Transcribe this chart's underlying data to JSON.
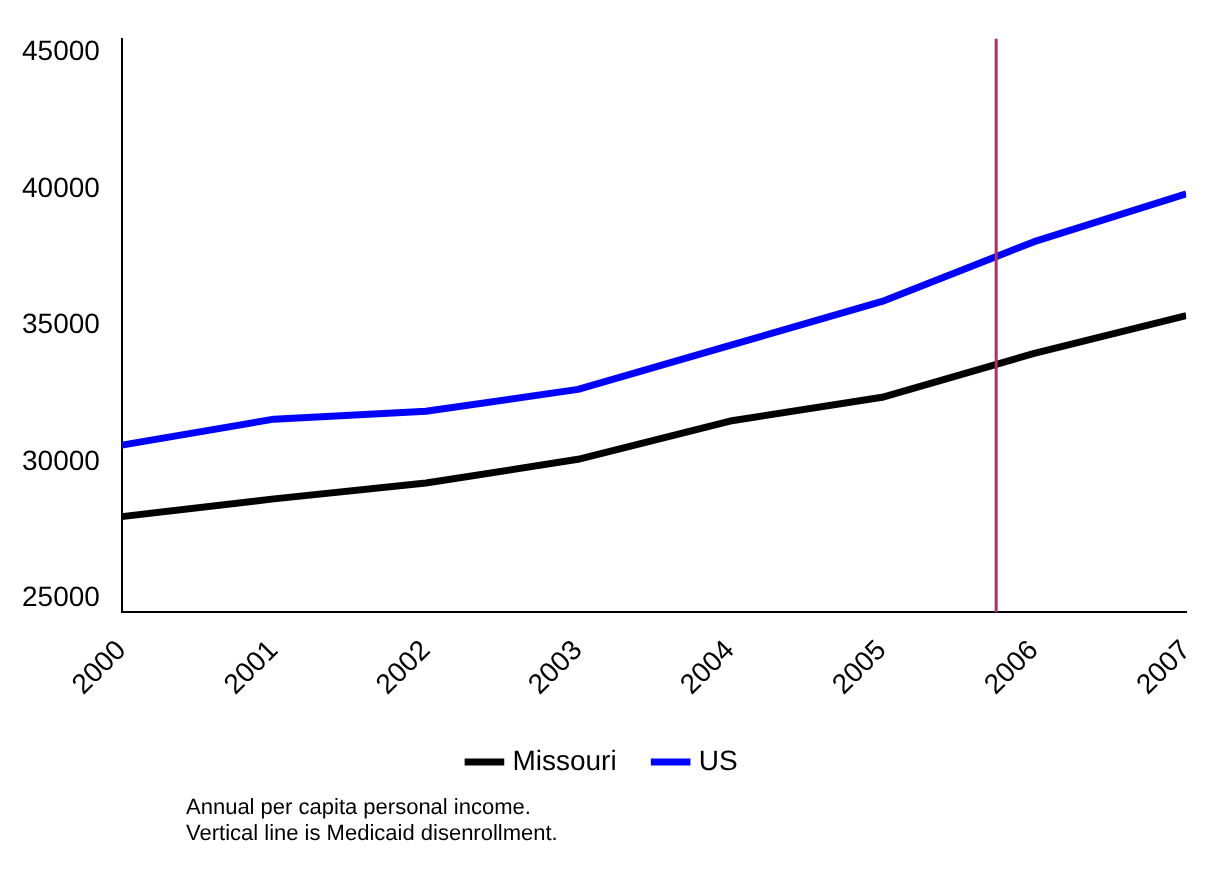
{
  "chart_data": {
    "type": "line",
    "x": [
      2000,
      2001,
      2002,
      2003,
      2004,
      2005,
      2006,
      2007
    ],
    "series": [
      {
        "name": "Missouri",
        "color": "#000000",
        "values": [
          28000,
          28650,
          29230,
          30100,
          31500,
          32370,
          33980,
          35360
        ]
      },
      {
        "name": "US",
        "color": "#0000ff",
        "values": [
          30620,
          31570,
          31860,
          32660,
          34270,
          35880,
          38070,
          39820
        ]
      }
    ],
    "xlim": [
      2000,
      2007
    ],
    "xticks": [
      2000,
      2001,
      2002,
      2003,
      2004,
      2005,
      2006,
      2007
    ],
    "ylim": [
      24500,
      45500
    ],
    "yticks": [
      25000,
      30000,
      35000,
      40000,
      45000
    ],
    "ref_lines": [
      {
        "axis": "x",
        "value": 2005.75,
        "color": "#b0305a"
      }
    ],
    "grid": false,
    "legend": "bottom",
    "marker": "none",
    "line_style": "solid",
    "annotations": [
      "Annual per capita personal income.",
      "Vertical line is Medicaid disenrollment."
    ]
  }
}
